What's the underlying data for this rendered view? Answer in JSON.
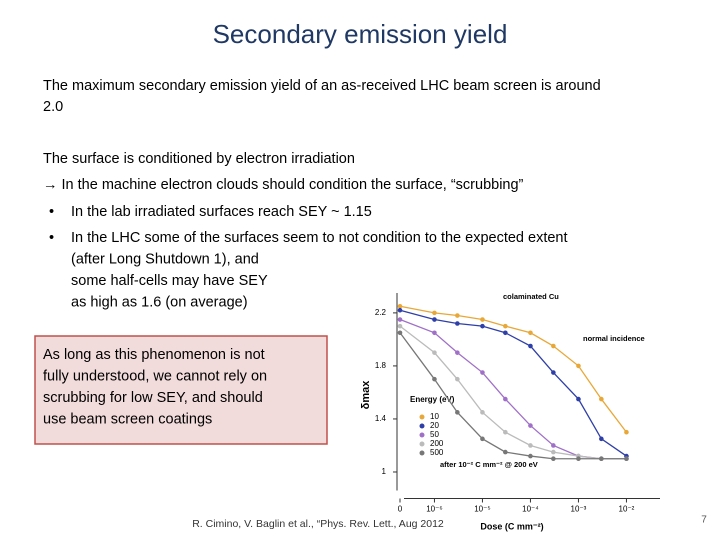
{
  "title": "Secondary emission yield",
  "intro_lines": [
    "The maximum secondary emission yield of an as-received LHC beam screen is around",
    "2.0"
  ],
  "conditioning": {
    "heading": "The surface is conditioned by electron irradiation",
    "arrow_line": "→ In the machine electron clouds should condition the surface, “scrubbing”",
    "bullets": [
      [
        "In the lab irradiated surfaces reach SEY ~ 1.15"
      ],
      [
        "In the LHC some of the surfaces seem to not condition to the expected extent",
        "(after Long Shutdown 1), and",
        "some half-cells may have SEY",
        "as high as 1.6 (on average)"
      ]
    ]
  },
  "note_box": [
    "As long as this phenomenon is not",
    "fully understood, we cannot rely on",
    "scrubbing for low SEY, and should",
    "use beam screen coatings"
  ],
  "citation": "R. Cimino, V. Baglin et al., “Phys. Rev. Lett., Aug 2012",
  "page_number": "7",
  "chart_data": {
    "type": "line",
    "log_x": true,
    "ylabel": "δmax",
    "xlabel": "Dose (C mm⁻²)",
    "annotations": [
      "colaminated Cu",
      "normal incidence",
      "after 10⁻² C mm⁻² @ 200 eV"
    ],
    "legend_title": "Energy (eV)",
    "x": [
      0,
      1e-06,
      3e-06,
      1e-05,
      3e-05,
      0.0001,
      0.0003,
      0.001,
      0.003,
      0.01
    ],
    "series": [
      {
        "name": "10",
        "color": "#e8a838",
        "values": [
          2.25,
          2.2,
          2.18,
          2.15,
          2.1,
          2.05,
          1.95,
          1.8,
          1.55,
          1.3
        ]
      },
      {
        "name": "20",
        "color": "#2e3fa8",
        "values": [
          2.22,
          2.15,
          2.12,
          2.1,
          2.05,
          1.95,
          1.75,
          1.55,
          1.25,
          1.12
        ]
      },
      {
        "name": "50",
        "color": "#a070c8",
        "values": [
          2.15,
          2.05,
          1.9,
          1.75,
          1.55,
          1.35,
          1.2,
          1.12,
          1.1,
          1.1
        ]
      },
      {
        "name": "200",
        "color": "#bbbbbb",
        "values": [
          2.1,
          1.9,
          1.7,
          1.45,
          1.3,
          1.2,
          1.15,
          1.12,
          1.1,
          1.1
        ]
      },
      {
        "name": "500",
        "color": "#777777",
        "values": [
          2.05,
          1.7,
          1.45,
          1.25,
          1.15,
          1.12,
          1.1,
          1.1,
          1.1,
          1.1
        ]
      }
    ],
    "xlim": [
      5e-07,
      0.05
    ],
    "xticks": [
      0,
      {
        "value": 1e-06,
        "label": "10⁻⁶"
      },
      {
        "value": 1e-05,
        "label": "10⁻⁵"
      },
      {
        "value": 0.0001,
        "label": "10⁻⁴"
      },
      {
        "value": 0.001,
        "label": "10⁻³"
      },
      {
        "value": 0.01,
        "label": "10⁻²"
      }
    ],
    "ylim": [
      0.8,
      2.35
    ],
    "yticks": [
      1.0,
      1.4,
      1.8,
      2.2
    ]
  }
}
